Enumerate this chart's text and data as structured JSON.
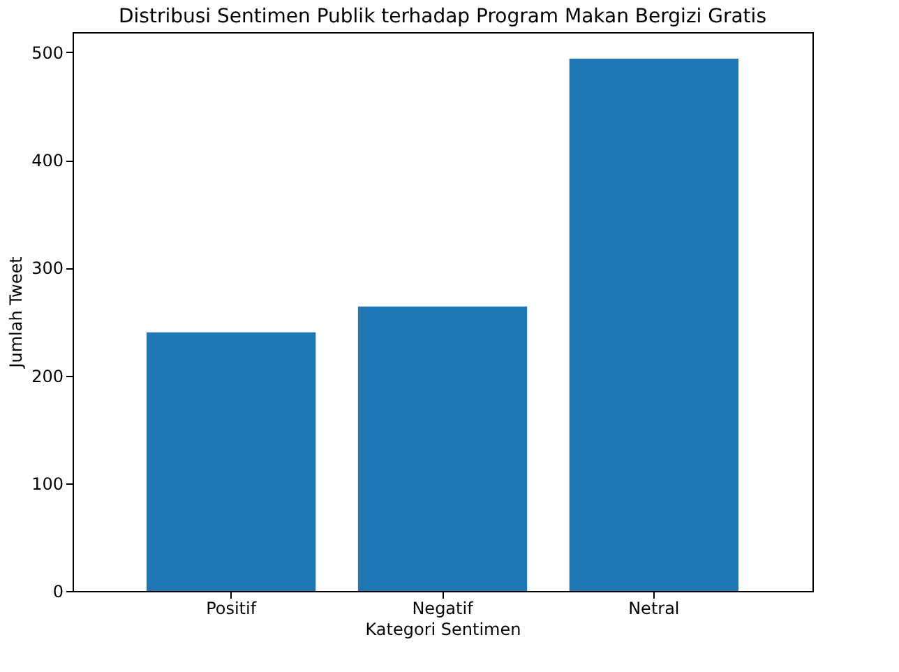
{
  "chart_data": {
    "type": "bar",
    "title": "Distribusi Sentimen Publik terhadap Program Makan Bergizi Gratis",
    "xlabel": "Kategori Sentimen",
    "ylabel": "Jumlah Tweet",
    "categories": [
      "Positif",
      "Negatif",
      "Netral"
    ],
    "values": [
      240,
      264,
      494
    ],
    "color": "#1f77b4",
    "ylim": [
      0,
      518.7
    ],
    "yticks": [
      0,
      100,
      200,
      300,
      400,
      500
    ],
    "grid": false
  }
}
